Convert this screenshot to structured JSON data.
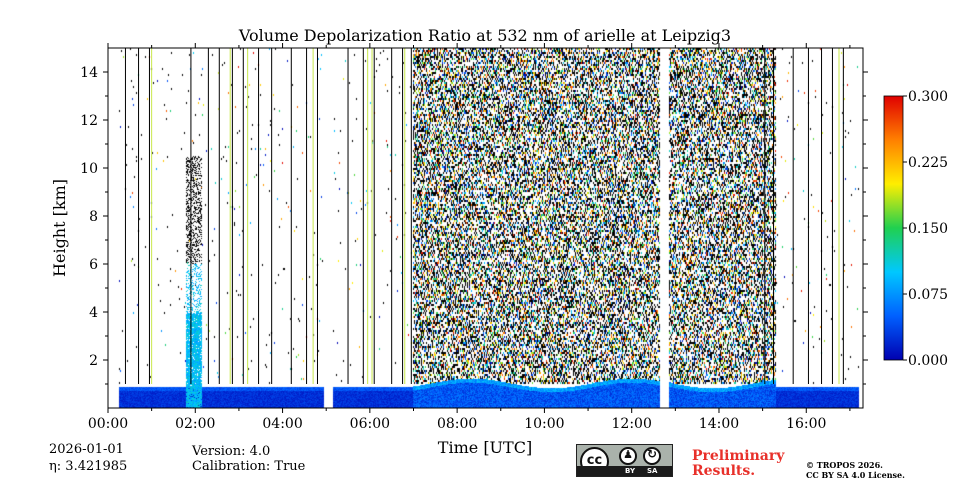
{
  "chart_data": {
    "type": "heatmap",
    "title": "Volume Depolarization Ratio at 532 nm of arielle at Leipzig3",
    "xlabel": "Time [UTC]",
    "ylabel": "Height [km]",
    "xlim": [
      0,
      17.3
    ],
    "ylim": [
      0,
      15
    ],
    "x_ticks": [
      0,
      2,
      4,
      6,
      8,
      10,
      12,
      14,
      16
    ],
    "x_tick_labels": [
      "00:00",
      "02:00",
      "04:00",
      "06:00",
      "08:00",
      "10:00",
      "12:00",
      "14:00",
      "16:00"
    ],
    "y_ticks": [
      2,
      4,
      6,
      8,
      10,
      12,
      14
    ],
    "y_tick_labels": [
      "2",
      "4",
      "6",
      "8",
      "10",
      "12",
      "14"
    ],
    "colorbar": {
      "range": [
        0.0,
        0.3
      ],
      "ticks": [
        0.0,
        0.075,
        0.15,
        0.225,
        0.3
      ],
      "tick_labels": [
        "0.000",
        "0.075",
        "0.150",
        "0.225",
        "0.300"
      ],
      "colors": [
        "#0000b0",
        "#0060ff",
        "#00c8ff",
        "#20d050",
        "#ffee00",
        "#ff8000",
        "#e00000"
      ]
    },
    "data_gaps_hours": [
      [
        0,
        0.25
      ],
      [
        4.95,
        5.15
      ],
      [
        12.65,
        12.85
      ],
      [
        17.2,
        17.3
      ]
    ],
    "dense_noise_hours": [
      7.0,
      15.3
    ],
    "boundary_layer_top_km": 1.0,
    "vertical_lines_hours": [
      0.4,
      0.7,
      0.95,
      1.9,
      2.3,
      2.55,
      2.85,
      3.1,
      3.45,
      3.75,
      4.2,
      4.55,
      4.8,
      5.5,
      5.85,
      6.1,
      6.5,
      6.75,
      6.95,
      15.05,
      15.25,
      15.7,
      16.05,
      16.35,
      16.6,
      16.85
    ],
    "green_lines_hours": [
      1.0,
      2.8,
      3.2,
      4.7,
      5.95,
      6.05,
      6.8,
      16.75
    ],
    "aerosol_plume": {
      "start_hours": 1.8,
      "end_hours": 2.15,
      "top_km": 10.5
    }
  },
  "info": {
    "date": "2026-01-01",
    "eta": "η: 3.421985",
    "version": "Version: 4.0",
    "calibration": "Calibration: True",
    "preliminary_line1": "Preliminary",
    "preliminary_line2": "Results.",
    "copyright_line1": "© TROPOS 2026.",
    "copyright_line2": "CC BY SA 4.0 License.",
    "license_badge_by": "BY",
    "license_badge_sa": "SA",
    "license_badge_cc": "cc"
  }
}
